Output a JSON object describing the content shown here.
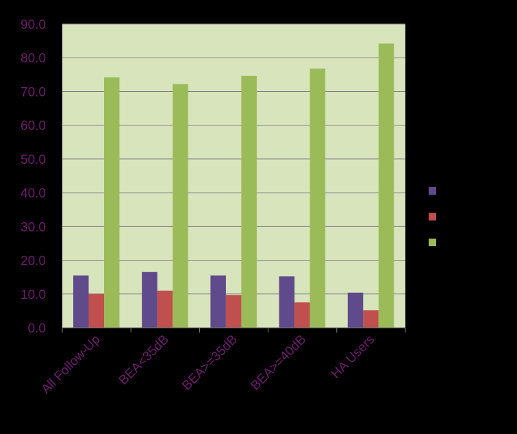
{
  "chart_data": {
    "type": "bar",
    "categories": [
      "All Follow-Up",
      "BEA<35dB",
      "BEA>=35dB",
      "BEA>=40dB",
      "HA Users"
    ],
    "series": [
      {
        "values": [
          15.5,
          16.5,
          15.5,
          15.2,
          10.4
        ],
        "color": "#5f4a8b"
      },
      {
        "values": [
          10.0,
          11.0,
          9.7,
          7.5,
          5.2
        ],
        "color": "#c0504d"
      },
      {
        "values": [
          74.2,
          72.2,
          74.6,
          76.8,
          84.2
        ],
        "color": "#9bbb59"
      }
    ],
    "yticks": [
      "0.0",
      "10.0",
      "20.0",
      "30.0",
      "40.0",
      "50.0",
      "60.0",
      "70.0",
      "80.0",
      "90.0"
    ],
    "ylim": [
      0,
      90
    ],
    "grid": true,
    "legend_position": "right",
    "colors": {
      "background": "#000000",
      "plot_area": "#d8e4bc",
      "gridline": "#7f7f7f",
      "tick_text": "#6b1d6b"
    }
  }
}
